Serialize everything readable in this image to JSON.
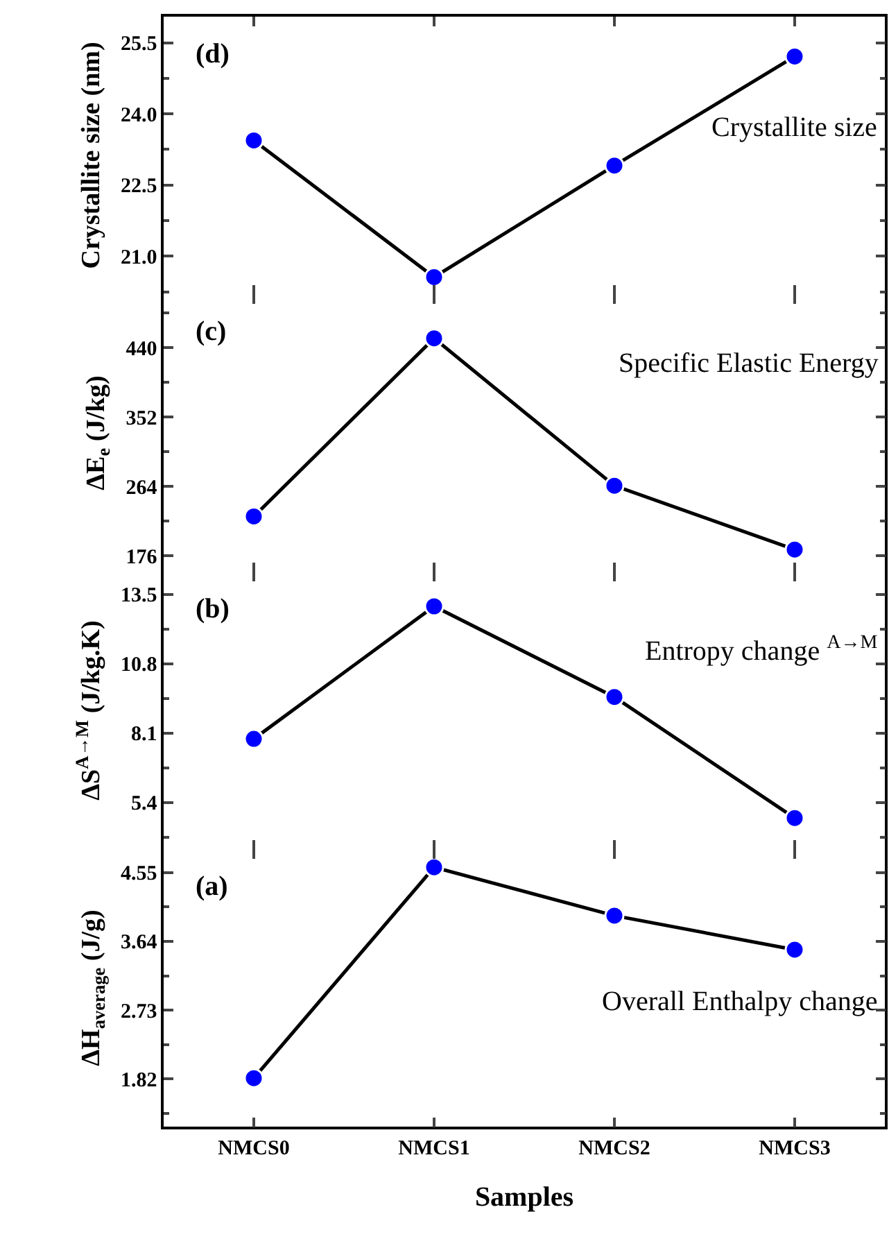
{
  "chart_data": [
    {
      "type": "line",
      "categories": [
        null,
        null,
        null,
        null
      ],
      "series": [
        {
          "color": "#0000ff",
          "values": [
            23.44,
            20.56,
            22.91,
            25.21
          ]
        }
      ],
      "ylim": [
        20.2,
        26.05
      ],
      "yticks": [
        {
          "value": 21,
          "label": "21.0"
        },
        22.5,
        {
          "value": 24,
          "label": "24.0"
        },
        25.5
      ],
      "ylabel": "Crystallite size (nm)",
      "annotations": [
        "(d)",
        "Crystallite size"
      ],
      "marker": "circle"
    },
    {
      "type": "line",
      "categories": [
        null,
        null,
        null,
        null
      ],
      "series": [
        {
          "color": "#0000ff",
          "values": [
            226,
            452,
            265,
            184
          ]
        }
      ],
      "ylim": [
        156,
        508
      ],
      "yticks": [
        176,
        264,
        352,
        440
      ],
      "ylabel": "ΔE$_{e}$ (J/kg)",
      "annotations": [
        "(c)",
        "Specific Elastic Energy"
      ],
      "marker": "circle"
    },
    {
      "type": "line",
      "categories": [
        null,
        null,
        null,
        null
      ],
      "series": [
        {
          "color": "#0000ff",
          "values": [
            7.88,
            13.04,
            9.51,
            4.8
          ]
        }
      ],
      "ylim": [
        3.59,
        14.39
      ],
      "yticks": [
        5.4,
        8.1,
        10.8,
        13.5
      ],
      "ylabel": "ΔS$^{A→M}$ (J/kg.K)",
      "annotations": [
        "(b)",
        "Entropy change $^{A→M}$"
      ],
      "marker": "circle"
    },
    {
      "type": "line",
      "categories": [
        "NMCS0",
        "NMCS1",
        "NMCS2",
        "NMCS3"
      ],
      "series": [
        {
          "color": "#0000ff",
          "values": [
            1.83,
            4.62,
            3.98,
            3.53
          ]
        }
      ],
      "ylim": [
        1.19,
        4.86
      ],
      "yticks": [
        1.82,
        2.73,
        3.64,
        4.55
      ],
      "ylabel": "ΔH$_{average}$ (J/g)",
      "xlabel": "Samples",
      "annotations": [
        "(a)",
        "Overall Enthalpy change"
      ],
      "marker": "circle"
    }
  ]
}
